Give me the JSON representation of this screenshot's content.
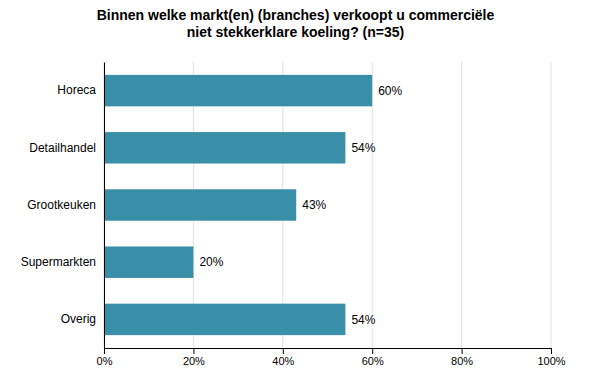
{
  "chart_data": {
    "type": "bar",
    "orientation": "horizontal",
    "title": "Binnen welke markt(en) (branches) verkoopt u commerciële\nniet stekkerklare koeling? (n=35)",
    "categories": [
      "Horeca",
      "Detailhandel",
      "Grootkeuken",
      "Supermarkten",
      "Overig"
    ],
    "values": [
      60,
      54,
      43,
      20,
      54
    ],
    "value_labels": [
      "60%",
      "54%",
      "43%",
      "20%",
      "54%"
    ],
    "color": "#3a8fa8",
    "xlim": [
      0,
      100
    ],
    "xticks": [
      {
        "value": 0,
        "label": "0%"
      },
      {
        "value": 20,
        "label": "20%"
      },
      {
        "value": 40,
        "label": "40%"
      },
      {
        "value": 60,
        "label": "60%"
      },
      {
        "value": 80,
        "label": "80%"
      },
      {
        "value": 100,
        "label": "100%"
      }
    ],
    "grid": true
  }
}
